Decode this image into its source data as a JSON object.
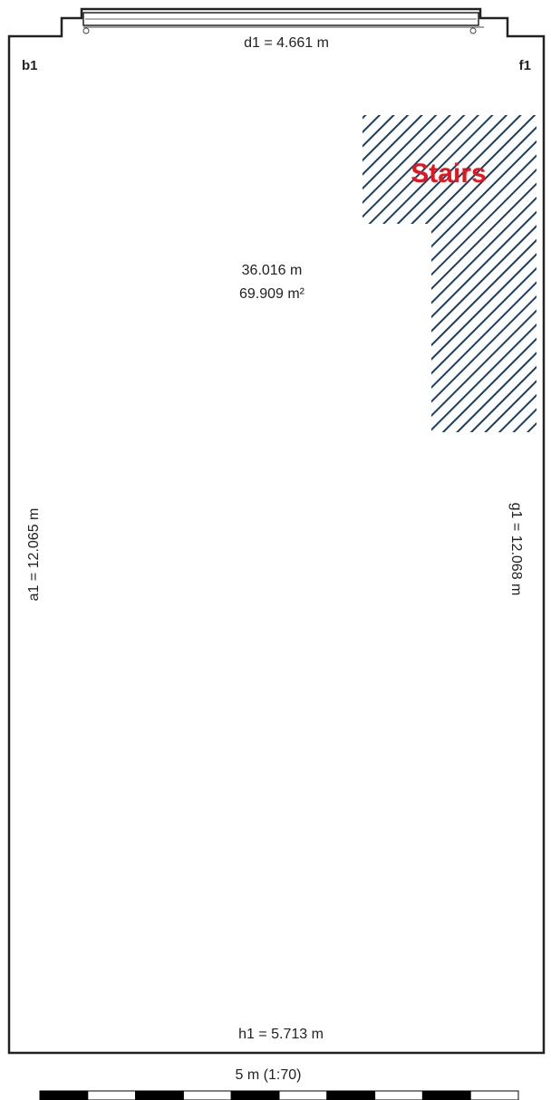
{
  "corners": {
    "b": "b1",
    "f": "f1"
  },
  "dimensions": {
    "top": "d1 = 4.661 m",
    "bottom": "h1 = 5.713 m",
    "left": "a1 = 12.065 m",
    "right": "g1 = 12.068 m"
  },
  "room": {
    "perimeter": "36.016 m",
    "area": "69.909 m²"
  },
  "stairs": {
    "label": "Stairs",
    "color": "#e8141c",
    "hatch_color": "#1a3f66"
  },
  "scale": {
    "label": "5 m (1:70)",
    "segments": 10
  }
}
